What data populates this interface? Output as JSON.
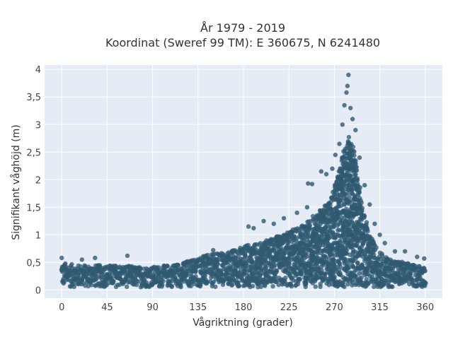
{
  "chart_data": {
    "type": "scatter",
    "title": "År 1979 - 2019",
    "subtitle": "Koordinat (Sweref 99 TM): E 360675, N 6241480",
    "xlabel": "Vågriktning (grader)",
    "ylabel": "Signifikant våghöjd (m)",
    "xlim": [
      -17,
      377
    ],
    "ylim": [
      -0.15,
      4.08
    ],
    "xticks": [
      0,
      45,
      90,
      135,
      180,
      225,
      270,
      315,
      360
    ],
    "xtick_labels": [
      "0",
      "45",
      "90",
      "135",
      "180",
      "225",
      "270",
      "315",
      "360"
    ],
    "yticks": [
      0,
      0.5,
      1,
      1.5,
      2,
      2.5,
      3,
      3.5,
      4
    ],
    "ytick_labels": [
      "0",
      "0,5",
      "1",
      "1,5",
      "2",
      "2,5",
      "3",
      "3,5",
      "4"
    ],
    "grid": true,
    "marker_color": "#2f5a72",
    "envelope": {
      "direction": [
        0,
        15,
        30,
        45,
        60,
        75,
        90,
        105,
        120,
        135,
        150,
        165,
        180,
        195,
        210,
        225,
        240,
        250,
        260,
        265,
        270,
        275,
        280,
        285,
        290,
        295,
        300,
        305,
        310,
        315,
        320,
        330,
        340,
        350,
        360
      ],
      "upper_height": [
        0.5,
        0.45,
        0.45,
        0.45,
        0.45,
        0.42,
        0.42,
        0.45,
        0.5,
        0.6,
        0.65,
        0.7,
        0.8,
        0.85,
        0.95,
        1.05,
        1.2,
        1.35,
        1.5,
        1.65,
        1.85,
        2.2,
        2.6,
        2.8,
        2.5,
        1.9,
        1.35,
        1.0,
        0.85,
        0.7,
        0.6,
        0.55,
        0.5,
        0.45,
        0.45
      ],
      "lower_height": 0.05
    },
    "outliers": [
      {
        "x": 0,
        "y": 0.58
      },
      {
        "x": 20,
        "y": 0.55
      },
      {
        "x": 33,
        "y": 0.58
      },
      {
        "x": 65,
        "y": 0.62
      },
      {
        "x": 150,
        "y": 0.72
      },
      {
        "x": 185,
        "y": 1.15
      },
      {
        "x": 190,
        "y": 1.12
      },
      {
        "x": 200,
        "y": 1.25
      },
      {
        "x": 210,
        "y": 1.2
      },
      {
        "x": 220,
        "y": 1.3
      },
      {
        "x": 233,
        "y": 1.4
      },
      {
        "x": 243,
        "y": 1.5
      },
      {
        "x": 244,
        "y": 1.93
      },
      {
        "x": 248,
        "y": 1.92
      },
      {
        "x": 257,
        "y": 2.15
      },
      {
        "x": 262,
        "y": 2.1
      },
      {
        "x": 268,
        "y": 2.2
      },
      {
        "x": 271,
        "y": 2.45
      },
      {
        "x": 275,
        "y": 2.65
      },
      {
        "x": 278,
        "y": 3.0
      },
      {
        "x": 280,
        "y": 3.35
      },
      {
        "x": 282,
        "y": 3.58
      },
      {
        "x": 283,
        "y": 3.7
      },
      {
        "x": 284,
        "y": 3.9
      },
      {
        "x": 286,
        "y": 3.3
      },
      {
        "x": 288,
        "y": 3.1
      },
      {
        "x": 291,
        "y": 2.9
      },
      {
        "x": 295,
        "y": 2.4
      },
      {
        "x": 300,
        "y": 1.9
      },
      {
        "x": 305,
        "y": 1.55
      },
      {
        "x": 310,
        "y": 1.2
      },
      {
        "x": 315,
        "y": 1.0
      },
      {
        "x": 320,
        "y": 0.85
      },
      {
        "x": 330,
        "y": 0.7
      },
      {
        "x": 340,
        "y": 0.7
      },
      {
        "x": 352,
        "y": 0.6
      },
      {
        "x": 359,
        "y": 0.57
      }
    ]
  }
}
